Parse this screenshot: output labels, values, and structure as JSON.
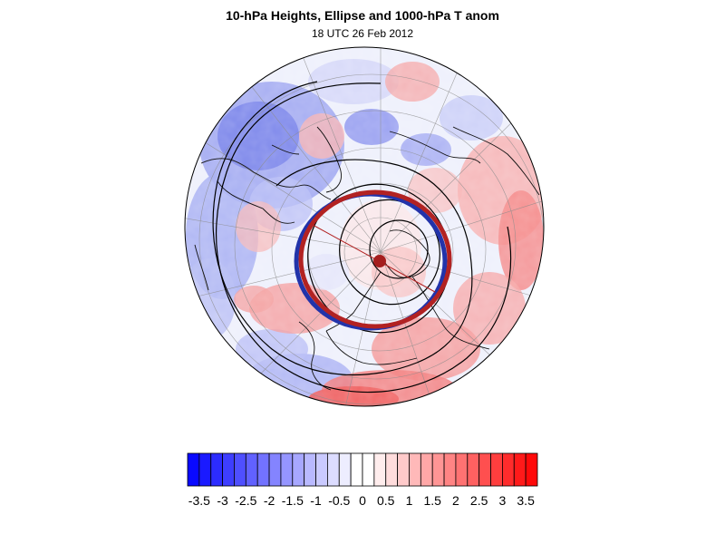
{
  "figure": {
    "title": "10-hPa Heights, Ellipse and 1000-hPa T anom",
    "subtitle": "18 UTC 26 Feb 2012"
  },
  "colorbar": {
    "min": -3.75,
    "max": 3.75,
    "step": 0.25,
    "negative_color": "#0000ff",
    "neutral_color": "#ffffff",
    "positive_color": "#ff0000",
    "tick_labels": [
      "-3.5",
      "-3",
      "-2.5",
      "-2",
      "-1.5",
      "-1",
      "-0.5",
      "0",
      "0.5",
      "1",
      "1.5",
      "2",
      "2.5",
      "3",
      "3.5"
    ]
  },
  "map": {
    "projection": "north polar orthographic",
    "ellipse_color": "#b22222",
    "contour_color": "#000000",
    "coastline_color": "#000000",
    "gridline_color": "#808080"
  }
}
